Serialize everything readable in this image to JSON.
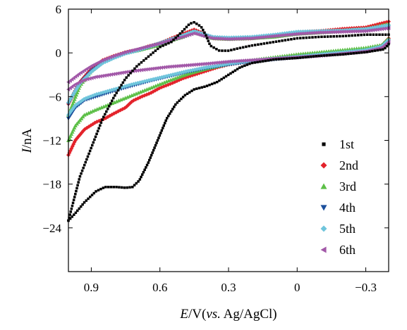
{
  "chart_data": {
    "type": "scatter",
    "x_label_italic": "E",
    "x_label_rest": "/V(",
    "x_label_vs": "vs.",
    "x_label_tail": " Ag/AgCl)",
    "y_label_italic": "I",
    "y_label_rest": "/nA",
    "xlim": [
      1.0,
      -0.4
    ],
    "ylim": [
      -30,
      6
    ],
    "x_axis_reversed": true,
    "x_ticks": [
      0.9,
      0.6,
      0.3,
      0,
      -0.3
    ],
    "x_tick_labels": [
      "0.9",
      "0.6",
      "0.3",
      "0",
      "−0.3"
    ],
    "y_ticks": [
      6,
      0,
      -6,
      -12,
      -18,
      -24
    ],
    "y_tick_labels": [
      "6",
      "0",
      "−6",
      "−12",
      "−18",
      "−24"
    ],
    "grid": false,
    "legend_position": "bottom-right",
    "series": [
      {
        "name": "1st",
        "color": "#000000",
        "marker": "square",
        "forward": [
          [
            1.0,
            -23.0
          ],
          [
            0.97,
            -22.0
          ],
          [
            0.93,
            -20.5
          ],
          [
            0.88,
            -19.0
          ],
          [
            0.84,
            -18.4
          ],
          [
            0.79,
            -18.4
          ],
          [
            0.75,
            -18.5
          ],
          [
            0.72,
            -18.4
          ],
          [
            0.69,
            -17.5
          ],
          [
            0.65,
            -15.0
          ],
          [
            0.61,
            -12.0
          ],
          [
            0.57,
            -9.0
          ],
          [
            0.53,
            -7.0
          ],
          [
            0.49,
            -5.8
          ],
          [
            0.45,
            -5.0
          ],
          [
            0.4,
            -4.6
          ],
          [
            0.35,
            -4.0
          ],
          [
            0.3,
            -3.0
          ],
          [
            0.25,
            -2.0
          ],
          [
            0.2,
            -1.4
          ],
          [
            0.1,
            -0.9
          ],
          [
            0.0,
            -0.7
          ],
          [
            -0.1,
            -0.4
          ],
          [
            -0.2,
            -0.2
          ],
          [
            -0.3,
            0.1
          ],
          [
            -0.38,
            0.5
          ],
          [
            -0.4,
            1.2
          ]
        ],
        "reverse": [
          [
            -0.4,
            2.5
          ],
          [
            -0.3,
            2.5
          ],
          [
            -0.2,
            2.3
          ],
          [
            -0.1,
            2.2
          ],
          [
            0.0,
            2.0
          ],
          [
            0.1,
            1.5
          ],
          [
            0.2,
            1.0
          ],
          [
            0.26,
            0.6
          ],
          [
            0.3,
            0.3
          ],
          [
            0.34,
            0.3
          ],
          [
            0.38,
            1.0
          ],
          [
            0.4,
            2.5
          ],
          [
            0.42,
            3.6
          ],
          [
            0.45,
            4.2
          ],
          [
            0.47,
            4.0
          ],
          [
            0.5,
            3.0
          ],
          [
            0.55,
            1.5
          ],
          [
            0.6,
            0.8
          ],
          [
            0.65,
            -0.5
          ],
          [
            0.7,
            -1.8
          ],
          [
            0.75,
            -3.5
          ],
          [
            0.8,
            -6.0
          ],
          [
            0.85,
            -9.0
          ],
          [
            0.9,
            -13.0
          ],
          [
            0.95,
            -17.0
          ],
          [
            1.0,
            -23.0
          ]
        ]
      },
      {
        "name": "2nd",
        "color": "#e3232b",
        "marker": "diamond",
        "forward": [
          [
            1.0,
            -14.0
          ],
          [
            0.97,
            -12.0
          ],
          [
            0.93,
            -10.5
          ],
          [
            0.88,
            -9.5
          ],
          [
            0.84,
            -9.0
          ],
          [
            0.8,
            -8.3
          ],
          [
            0.75,
            -7.5
          ],
          [
            0.72,
            -6.6
          ],
          [
            0.68,
            -6.0
          ],
          [
            0.64,
            -5.5
          ],
          [
            0.6,
            -4.8
          ],
          [
            0.55,
            -4.2
          ],
          [
            0.5,
            -3.5
          ],
          [
            0.45,
            -3.0
          ],
          [
            0.4,
            -2.5
          ],
          [
            0.35,
            -2.0
          ],
          [
            0.3,
            -1.6
          ],
          [
            0.2,
            -1.1
          ],
          [
            0.1,
            -0.8
          ],
          [
            0.0,
            -0.4
          ],
          [
            -0.1,
            -0.1
          ],
          [
            -0.2,
            0.2
          ],
          [
            -0.3,
            0.5
          ],
          [
            -0.37,
            1.0
          ],
          [
            -0.4,
            2.0
          ]
        ],
        "reverse": [
          [
            -0.4,
            4.3
          ],
          [
            -0.3,
            3.5
          ],
          [
            -0.2,
            3.3
          ],
          [
            -0.1,
            3.0
          ],
          [
            0.0,
            2.8
          ],
          [
            0.1,
            2.3
          ],
          [
            0.2,
            2.0
          ],
          [
            0.3,
            1.9
          ],
          [
            0.37,
            2.0
          ],
          [
            0.42,
            2.8
          ],
          [
            0.45,
            3.2
          ],
          [
            0.5,
            2.6
          ],
          [
            0.55,
            2.0
          ],
          [
            0.6,
            1.3
          ],
          [
            0.65,
            0.9
          ],
          [
            0.7,
            0.4
          ],
          [
            0.75,
            0.1
          ],
          [
            0.8,
            -0.4
          ],
          [
            0.85,
            -1.0
          ],
          [
            0.9,
            -2.2
          ],
          [
            0.95,
            -4.0
          ],
          [
            1.0,
            -7.0
          ]
        ]
      },
      {
        "name": "3rd",
        "color": "#5cbf47",
        "marker": "triangle-up",
        "forward": [
          [
            1.0,
            -12.0
          ],
          [
            0.97,
            -10.0
          ],
          [
            0.93,
            -8.5
          ],
          [
            0.88,
            -7.8
          ],
          [
            0.8,
            -6.8
          ],
          [
            0.72,
            -5.8
          ],
          [
            0.64,
            -4.8
          ],
          [
            0.56,
            -3.8
          ],
          [
            0.48,
            -2.9
          ],
          [
            0.4,
            -2.2
          ],
          [
            0.3,
            -1.5
          ],
          [
            0.2,
            -1.0
          ],
          [
            0.1,
            -0.6
          ],
          [
            0.0,
            -0.2
          ],
          [
            -0.1,
            0.1
          ],
          [
            -0.2,
            0.4
          ],
          [
            -0.3,
            0.7
          ],
          [
            -0.37,
            1.1
          ],
          [
            -0.4,
            2.0
          ]
        ],
        "reverse": [
          [
            -0.4,
            4.0
          ],
          [
            -0.3,
            3.3
          ],
          [
            -0.2,
            3.0
          ],
          [
            -0.1,
            2.8
          ],
          [
            0.0,
            2.6
          ],
          [
            0.1,
            2.2
          ],
          [
            0.2,
            2.0
          ],
          [
            0.3,
            1.9
          ],
          [
            0.37,
            2.0
          ],
          [
            0.42,
            2.5
          ],
          [
            0.45,
            2.8
          ],
          [
            0.5,
            2.2
          ],
          [
            0.55,
            1.7
          ],
          [
            0.6,
            1.1
          ],
          [
            0.65,
            0.7
          ],
          [
            0.7,
            0.3
          ],
          [
            0.75,
            0.0
          ],
          [
            0.8,
            -0.5
          ],
          [
            0.85,
            -1.2
          ],
          [
            0.9,
            -2.5
          ],
          [
            0.95,
            -4.5
          ],
          [
            1.0,
            -8.5
          ]
        ]
      },
      {
        "name": "4th",
        "color": "#1b4f9c",
        "marker": "triangle-down",
        "forward": [
          [
            1.0,
            -9.0
          ],
          [
            0.97,
            -7.5
          ],
          [
            0.93,
            -6.5
          ],
          [
            0.88,
            -6.0
          ],
          [
            0.8,
            -5.2
          ],
          [
            0.72,
            -4.5
          ],
          [
            0.64,
            -3.8
          ],
          [
            0.56,
            -3.2
          ],
          [
            0.48,
            -2.6
          ],
          [
            0.4,
            -2.1
          ],
          [
            0.3,
            -1.6
          ],
          [
            0.2,
            -1.2
          ],
          [
            0.1,
            -0.9
          ],
          [
            0.0,
            -0.6
          ],
          [
            -0.1,
            -0.3
          ],
          [
            -0.2,
            0.0
          ],
          [
            -0.3,
            0.3
          ],
          [
            -0.37,
            0.8
          ],
          [
            -0.4,
            1.6
          ]
        ],
        "reverse": [
          [
            -0.4,
            3.6
          ],
          [
            -0.3,
            3.2
          ],
          [
            -0.2,
            3.0
          ],
          [
            -0.1,
            2.9
          ],
          [
            0.0,
            2.8
          ],
          [
            0.1,
            2.4
          ],
          [
            0.2,
            2.1
          ],
          [
            0.3,
            2.0
          ],
          [
            0.37,
            2.1
          ],
          [
            0.42,
            2.6
          ],
          [
            0.45,
            2.9
          ],
          [
            0.5,
            2.3
          ],
          [
            0.55,
            1.8
          ],
          [
            0.6,
            1.3
          ],
          [
            0.65,
            0.8
          ],
          [
            0.7,
            0.4
          ],
          [
            0.75,
            0.0
          ],
          [
            0.8,
            -0.6
          ],
          [
            0.85,
            -1.3
          ],
          [
            0.9,
            -2.5
          ],
          [
            0.95,
            -4.2
          ],
          [
            1.0,
            -7.0
          ]
        ]
      },
      {
        "name": "5th",
        "color": "#6fc5dc",
        "marker": "diamond",
        "forward": [
          [
            1.0,
            -8.5
          ],
          [
            0.97,
            -7.2
          ],
          [
            0.93,
            -6.3
          ],
          [
            0.88,
            -5.7
          ],
          [
            0.8,
            -5.0
          ],
          [
            0.72,
            -4.3
          ],
          [
            0.64,
            -3.7
          ],
          [
            0.56,
            -3.1
          ],
          [
            0.48,
            -2.5
          ],
          [
            0.4,
            -2.0
          ],
          [
            0.3,
            -1.5
          ],
          [
            0.2,
            -1.1
          ],
          [
            0.1,
            -0.8
          ],
          [
            0.0,
            -0.5
          ],
          [
            -0.1,
            -0.2
          ],
          [
            -0.2,
            0.1
          ],
          [
            -0.3,
            0.4
          ],
          [
            -0.37,
            0.9
          ],
          [
            -0.4,
            1.8
          ]
        ],
        "reverse": [
          [
            -0.4,
            3.8
          ],
          [
            -0.3,
            3.3
          ],
          [
            -0.2,
            3.1
          ],
          [
            -0.1,
            3.0
          ],
          [
            0.0,
            2.9
          ],
          [
            0.1,
            2.5
          ],
          [
            0.2,
            2.2
          ],
          [
            0.3,
            2.1
          ],
          [
            0.37,
            2.2
          ],
          [
            0.42,
            2.7
          ],
          [
            0.45,
            3.0
          ],
          [
            0.5,
            2.4
          ],
          [
            0.55,
            1.9
          ],
          [
            0.6,
            1.3
          ],
          [
            0.65,
            0.8
          ],
          [
            0.7,
            0.3
          ],
          [
            0.75,
            -0.1
          ],
          [
            0.8,
            -0.7
          ],
          [
            0.85,
            -1.4
          ],
          [
            0.9,
            -2.6
          ],
          [
            0.95,
            -4.2
          ],
          [
            1.0,
            -6.8
          ]
        ]
      },
      {
        "name": "6th",
        "color": "#a258a8",
        "marker": "triangle-left",
        "forward": [
          [
            1.0,
            -5.0
          ],
          [
            0.97,
            -4.3
          ],
          [
            0.93,
            -3.7
          ],
          [
            0.88,
            -3.3
          ],
          [
            0.8,
            -2.9
          ],
          [
            0.72,
            -2.5
          ],
          [
            0.64,
            -2.2
          ],
          [
            0.56,
            -1.9
          ],
          [
            0.48,
            -1.7
          ],
          [
            0.4,
            -1.5
          ],
          [
            0.3,
            -1.2
          ],
          [
            0.2,
            -1.0
          ],
          [
            0.1,
            -0.8
          ],
          [
            0.0,
            -0.6
          ],
          [
            -0.1,
            -0.4
          ],
          [
            -0.2,
            -0.1
          ],
          [
            -0.3,
            0.2
          ],
          [
            -0.37,
            0.7
          ],
          [
            -0.4,
            1.5
          ]
        ],
        "reverse": [
          [
            -0.4,
            3.4
          ],
          [
            -0.3,
            3.0
          ],
          [
            -0.2,
            2.9
          ],
          [
            -0.1,
            2.8
          ],
          [
            0.0,
            2.6
          ],
          [
            0.1,
            2.3
          ],
          [
            0.2,
            2.0
          ],
          [
            0.3,
            1.9
          ],
          [
            0.37,
            2.0
          ],
          [
            0.42,
            2.4
          ],
          [
            0.45,
            2.7
          ],
          [
            0.5,
            2.2
          ],
          [
            0.55,
            1.8
          ],
          [
            0.6,
            1.3
          ],
          [
            0.65,
            0.9
          ],
          [
            0.7,
            0.5
          ],
          [
            0.75,
            0.1
          ],
          [
            0.8,
            -0.4
          ],
          [
            0.85,
            -1.0
          ],
          [
            0.9,
            -1.8
          ],
          [
            0.95,
            -2.8
          ],
          [
            1.0,
            -4.0
          ]
        ]
      }
    ]
  }
}
